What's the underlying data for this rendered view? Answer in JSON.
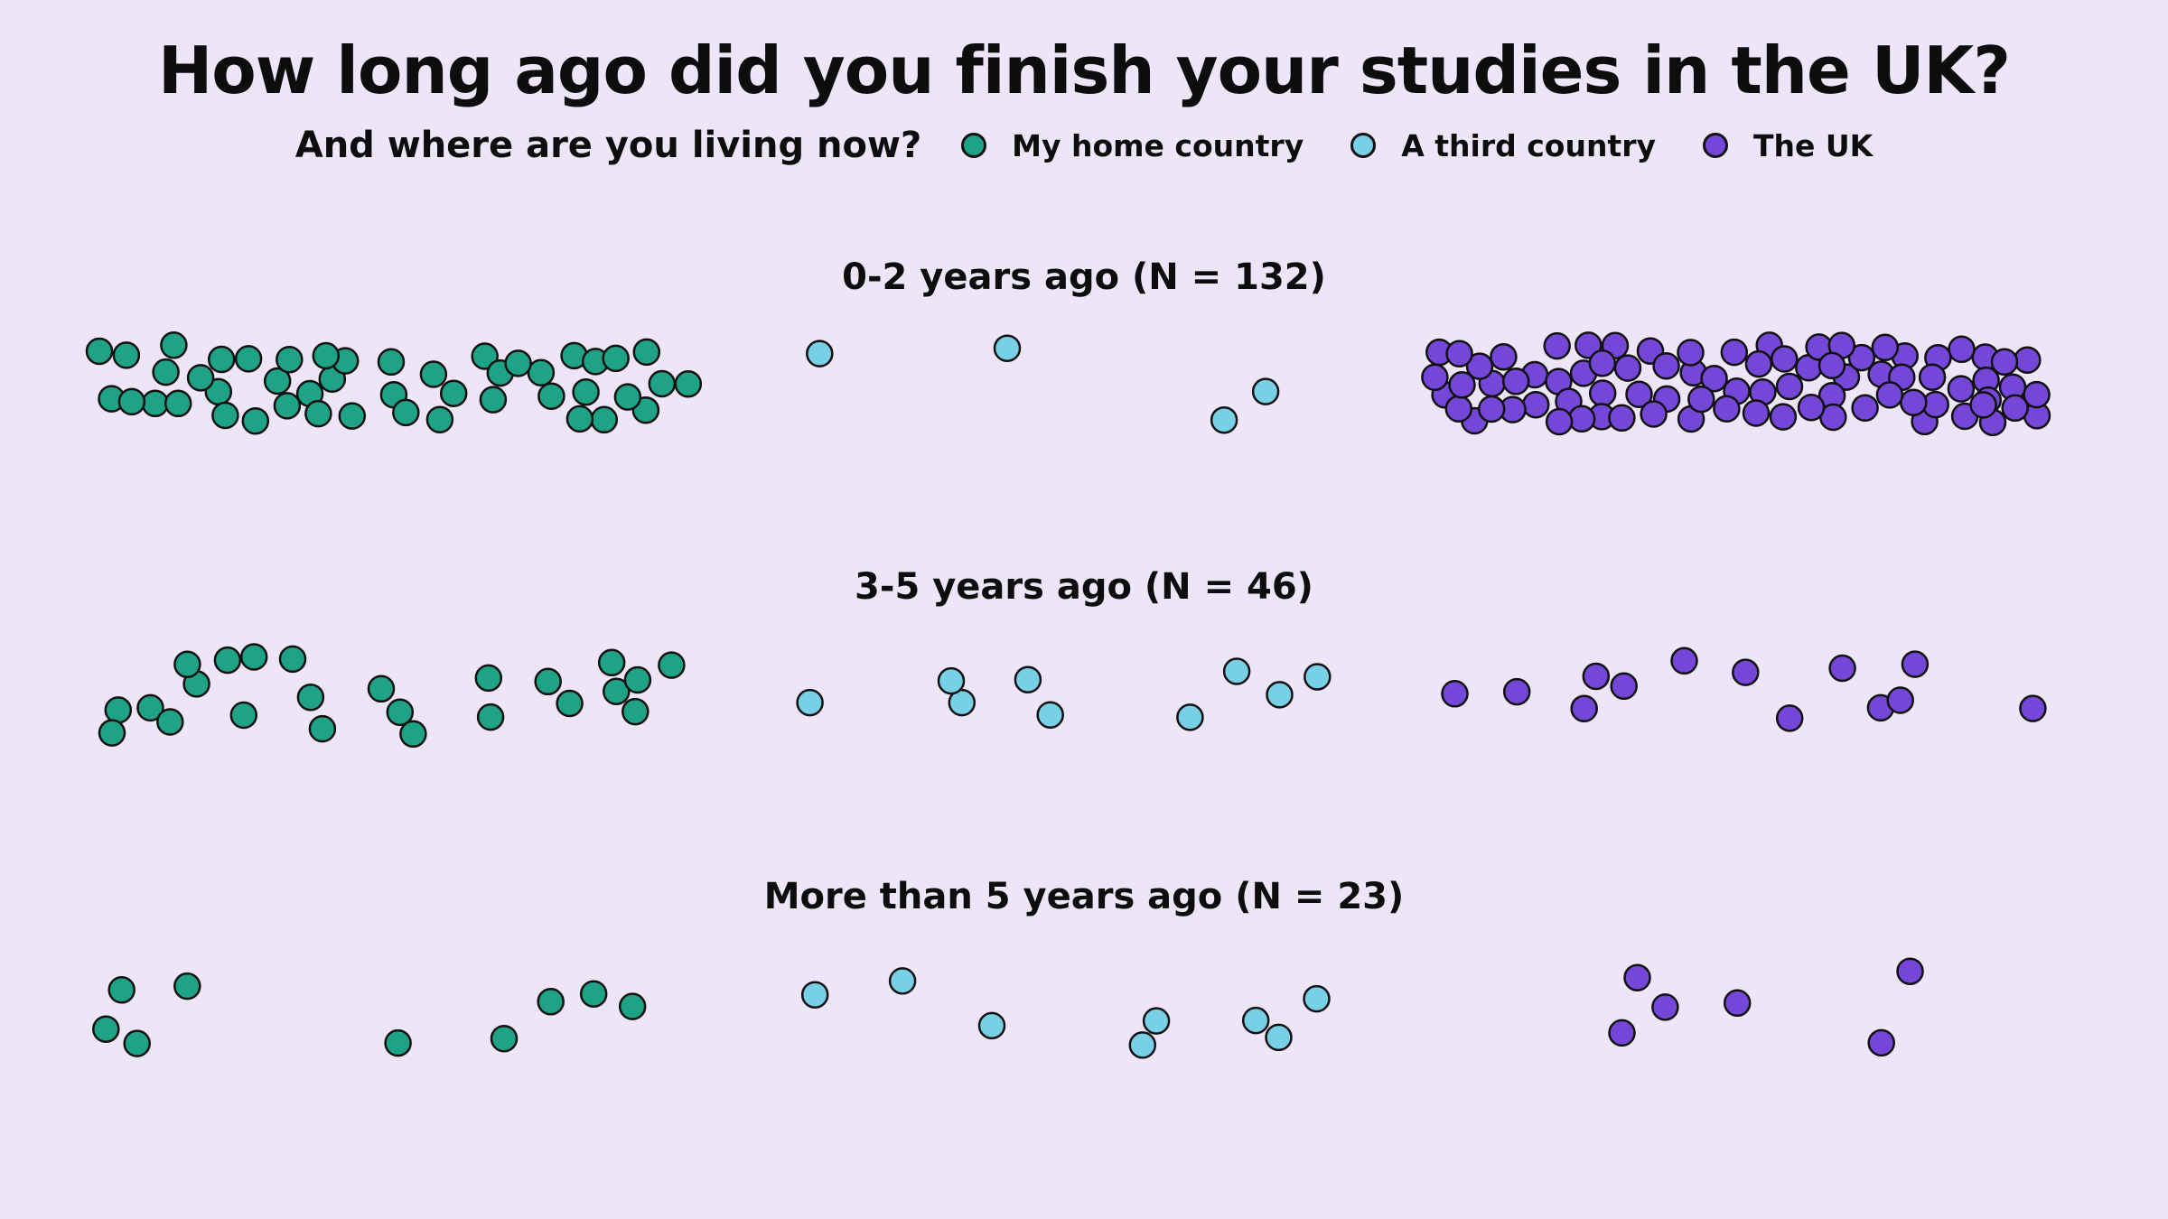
{
  "title": "How long ago did you finish your studies in the UK?",
  "legend": {
    "subtitle": "And where are you living now?",
    "items": [
      {
        "name": "My home country",
        "color": "#1fa386"
      },
      {
        "name": "A third country",
        "color": "#78d0e6"
      },
      {
        "name": "The UK",
        "color": "#7547d9"
      }
    ]
  },
  "chart_data": {
    "type": "scatter",
    "description_of_encoding": "beeswarm / jitter strip: each dot is one respondent, grouped by residence",
    "groups": [
      {
        "title": "0-2 years ago (N = 132)",
        "counts": {
          "My home country": 46,
          "A third country": 4,
          "The UK": 82
        }
      },
      {
        "title": "3-5 years ago (N = 46)",
        "counts": {
          "My home country": 24,
          "A third country": 9,
          "The UK": 13
        }
      },
      {
        "title": "More than 5 years ago (N = 23)",
        "counts": {
          "My home country": 9,
          "A third country": 8,
          "The UK": 6
        }
      }
    ]
  }
}
